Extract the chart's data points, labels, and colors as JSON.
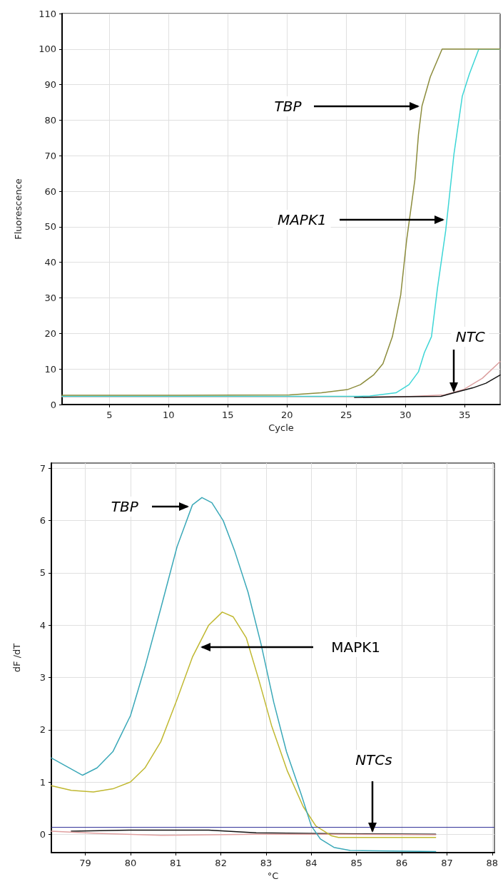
{
  "chart_data": [
    {
      "type": "line",
      "xlabel": "Cycle",
      "ylabel": "Fluorescence",
      "xlim": [
        1,
        38
      ],
      "ylim": [
        0,
        110
      ],
      "xticks": [
        5,
        10,
        15,
        20,
        25,
        30,
        35
      ],
      "yticks": [
        0,
        10,
        20,
        30,
        40,
        50,
        60,
        70,
        80,
        90,
        100,
        110
      ],
      "grid": true,
      "marker": "none",
      "line_style": "solid",
      "annotations": [
        {
          "text": "TBP",
          "x": 31.4,
          "y": 84
        },
        {
          "text": "MAPK1",
          "x": 33.5,
          "y": 52.0
        },
        {
          "text": "NTC",
          "x": 34.1,
          "y": 3.3
        }
      ],
      "series": [
        {
          "color": "#dca0a0",
          "x": [
            1,
            10,
            20,
            30,
            33.3,
            34.9,
            36.5,
            38
          ],
          "values": [
            2.2,
            2.2,
            2.2,
            2.2,
            2.7,
            4.2,
            7.4,
            12.1
          ]
        },
        {
          "color": "#111111",
          "x": [
            25.7,
            30,
            33,
            34.1,
            35.7,
            36.8,
            38
          ],
          "values": [
            2.0,
            2.2,
            2.3,
            3.3,
            4.7,
            6.0,
            8.3
          ]
        },
        {
          "color": "#3dd6d6",
          "x": [
            1,
            10,
            20,
            26,
            27,
            29.2,
            30.3,
            31.1,
            31.6,
            32.2,
            32.7,
            33.4,
            34.1,
            34.8,
            35.4,
            36.2,
            38
          ],
          "values": [
            2.3,
            2.3,
            2.3,
            2.3,
            2.4,
            3.3,
            5.6,
            9.2,
            14.6,
            19.1,
            32.6,
            48.9,
            70.5,
            86.7,
            93.0,
            100,
            100
          ]
        },
        {
          "color": "#8c8c3c",
          "x": [
            1,
            10,
            20.2,
            22.9,
            25.1,
            26.2,
            27.3,
            28.1,
            28.9,
            29.6,
            30.1,
            30.8,
            31.1,
            31.4,
            32.1,
            33.1,
            38
          ],
          "values": [
            2.6,
            2.6,
            2.7,
            3.3,
            4.2,
            5.6,
            8.3,
            11.5,
            19.1,
            30.8,
            46.2,
            63.3,
            75.9,
            84,
            92.2,
            100,
            100
          ]
        }
      ]
    },
    {
      "type": "line",
      "xlabel": "°C",
      "ylabel": "dF /dT",
      "xlim": [
        78.25,
        88.05
      ],
      "ylim": [
        -0.35,
        7.1
      ],
      "xticks": [
        79,
        80,
        81,
        82,
        83,
        84,
        85,
        86,
        87,
        88
      ],
      "yticks": [
        0,
        1,
        2,
        3,
        4,
        5,
        6,
        7
      ],
      "grid": true,
      "marker": "none",
      "line_style": "solid",
      "ref_lines": [
        {
          "axis": "y",
          "value": 0.14,
          "color": "#333399"
        }
      ],
      "annotations": [
        {
          "text": "TBP",
          "x": 81.34,
          "y": 6.27
        },
        {
          "text": "MAPK1",
          "x": 81.48,
          "y": 3.58
        },
        {
          "text": "NTCs",
          "x": 85.35,
          "y": 0.0
        }
      ],
      "series": [
        {
          "color": "#111111",
          "x": [
            78.69,
            79.96,
            81.73,
            82.78,
            84.5,
            86.75
          ],
          "values": [
            0.06,
            0.08,
            0.08,
            0.03,
            0.01,
            0.0
          ]
        },
        {
          "color": "#e0a0a0",
          "x": [
            78.25,
            79.26,
            80.67,
            82.78,
            84.5,
            86.75
          ],
          "values": [
            0.06,
            0.02,
            -0.02,
            0.0,
            0.0,
            -0.01
          ]
        },
        {
          "color": "#c0b830",
          "x": [
            78.25,
            78.69,
            79.18,
            79.61,
            80.0,
            80.32,
            80.67,
            81.03,
            81.37,
            81.73,
            82.03,
            82.27,
            82.56,
            82.84,
            83.12,
            83.47,
            83.82,
            84.1,
            84.45,
            84.6,
            86.75
          ],
          "values": [
            0.93,
            0.84,
            0.81,
            0.87,
            1.0,
            1.27,
            1.77,
            2.58,
            3.39,
            4.0,
            4.25,
            4.16,
            3.76,
            2.95,
            2.08,
            1.21,
            0.53,
            0.16,
            -0.03,
            -0.06,
            -0.06
          ]
        },
        {
          "color": "#3aa8b8",
          "x": [
            78.25,
            78.94,
            79.26,
            79.61,
            80.0,
            80.32,
            80.67,
            81.03,
            81.37,
            81.58,
            81.8,
            82.05,
            82.3,
            82.6,
            82.89,
            83.17,
            83.45,
            83.77,
            84.0,
            84.2,
            84.5,
            84.86,
            86.75
          ],
          "values": [
            1.46,
            1.13,
            1.27,
            1.58,
            2.27,
            3.2,
            4.32,
            5.5,
            6.3,
            6.44,
            6.34,
            6.0,
            5.43,
            4.63,
            3.63,
            2.52,
            1.58,
            0.78,
            0.16,
            -0.09,
            -0.25,
            -0.31,
            -0.33
          ]
        }
      ]
    }
  ]
}
